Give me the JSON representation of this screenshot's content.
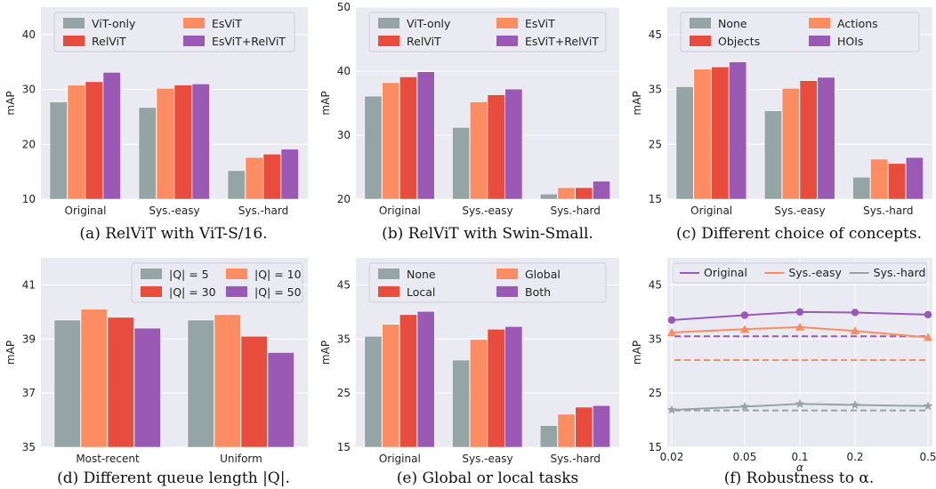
{
  "chart_data": [
    {
      "type": "bar",
      "caption": "(a) RelViT with ViT-S/16.",
      "ylabel": "mAP",
      "ylim": [
        10,
        45
      ],
      "yticks": [
        10,
        20,
        30,
        40
      ],
      "categories": [
        "Original",
        "Sys.-easy",
        "Sys.-hard"
      ],
      "legend_position": "top",
      "series": [
        {
          "name": "ViT-only",
          "color": "#95a5a6",
          "values": [
            27.7,
            26.7,
            15.2
          ]
        },
        {
          "name": "EsViT",
          "color": "#fc8d62",
          "values": [
            30.8,
            30.2,
            17.6
          ]
        },
        {
          "name": "RelViT",
          "color": "#e74c3c",
          "values": [
            31.4,
            30.8,
            18.2
          ]
        },
        {
          "name": "EsViT+RelViT",
          "color": "#9b59b6",
          "values": [
            33.1,
            31.0,
            19.1
          ]
        }
      ]
    },
    {
      "type": "bar",
      "caption": "(b) RelViT with Swin-Small.",
      "ylabel": "mAP",
      "ylim": [
        20,
        50
      ],
      "yticks": [
        20,
        30,
        40,
        50
      ],
      "categories": [
        "Original",
        "Sys.-easy",
        "Sys.-hard"
      ],
      "legend_position": "top",
      "series": [
        {
          "name": "ViT-only",
          "color": "#95a5a6",
          "values": [
            36.1,
            31.2,
            20.8
          ]
        },
        {
          "name": "EsViT",
          "color": "#fc8d62",
          "values": [
            38.2,
            35.2,
            21.8
          ]
        },
        {
          "name": "RelViT",
          "color": "#e74c3c",
          "values": [
            39.1,
            36.3,
            21.8
          ]
        },
        {
          "name": "EsViT+RelViT",
          "color": "#9b59b6",
          "values": [
            39.9,
            37.2,
            22.8
          ]
        }
      ]
    },
    {
      "type": "bar",
      "caption": "(c) Different choice of concepts.",
      "ylabel": "mAP",
      "ylim": [
        15,
        50
      ],
      "yticks": [
        15,
        25,
        35,
        45
      ],
      "categories": [
        "Original",
        "Sys.-easy",
        "Sys.-hard"
      ],
      "legend_position": "top",
      "series": [
        {
          "name": "None",
          "color": "#95a5a6",
          "values": [
            35.5,
            31.1,
            19.0
          ]
        },
        {
          "name": "Actions",
          "color": "#fc8d62",
          "values": [
            38.7,
            35.2,
            22.3
          ]
        },
        {
          "name": "Objects",
          "color": "#e74c3c",
          "values": [
            39.1,
            36.6,
            21.5
          ]
        },
        {
          "name": "HOIs",
          "color": "#9b59b6",
          "values": [
            40.0,
            37.2,
            22.6
          ]
        }
      ]
    },
    {
      "type": "bar",
      "caption": "(d) Different queue length |Q|.",
      "ylabel": "mAP",
      "ylim": [
        35,
        42
      ],
      "yticks": [
        35,
        37,
        39,
        41
      ],
      "categories": [
        "Most-recent",
        "Uniform"
      ],
      "legend_position": "top-right",
      "series": [
        {
          "name": "|Q| = 5",
          "color": "#95a5a6",
          "values": [
            39.7,
            39.7
          ]
        },
        {
          "name": "|Q| = 10",
          "color": "#fc8d62",
          "values": [
            40.1,
            39.9
          ]
        },
        {
          "name": "|Q| = 30",
          "color": "#e74c3c",
          "values": [
            39.8,
            39.1
          ]
        },
        {
          "name": "|Q| = 50",
          "color": "#9b59b6",
          "values": [
            39.4,
            38.5
          ]
        }
      ]
    },
    {
      "type": "bar",
      "caption": "(e) Global or local tasks",
      "ylabel": "mAP",
      "ylim": [
        15,
        50
      ],
      "yticks": [
        15,
        25,
        35,
        45
      ],
      "categories": [
        "Original",
        "Sys.-easy",
        "Sys.-hard"
      ],
      "legend_position": "top",
      "series": [
        {
          "name": "None",
          "color": "#95a5a6",
          "values": [
            35.5,
            31.1,
            19.0
          ]
        },
        {
          "name": "Global",
          "color": "#fc8d62",
          "values": [
            37.7,
            34.9,
            21.1
          ]
        },
        {
          "name": "Local",
          "color": "#e74c3c",
          "values": [
            39.5,
            36.8,
            22.4
          ]
        },
        {
          "name": "Both",
          "color": "#9b59b6",
          "values": [
            40.1,
            37.3,
            22.7
          ]
        }
      ]
    },
    {
      "type": "line",
      "caption": "(f) Robustness to α.",
      "ylabel": "mAP",
      "xlabel": "α",
      "ylim": [
        15,
        50
      ],
      "yticks": [
        15,
        25,
        35,
        45
      ],
      "x": [
        0.02,
        0.05,
        0.1,
        0.2,
        0.5
      ],
      "xscale": "log",
      "legend_position": "top",
      "series": [
        {
          "name": "Original",
          "color": "#9b59b6",
          "marker": "circle",
          "values": [
            38.5,
            39.4,
            40.0,
            39.9,
            39.5
          ],
          "baseline": 35.5
        },
        {
          "name": "Sys.-easy",
          "color": "#fc8d62",
          "marker": "triangle",
          "values": [
            36.2,
            36.8,
            37.2,
            36.5,
            35.3
          ],
          "baseline": 31.1
        },
        {
          "name": "Sys.-hard",
          "color": "#95a5a6",
          "marker": "star",
          "values": [
            21.9,
            22.5,
            23.0,
            22.8,
            22.6
          ],
          "baseline": 21.8
        }
      ]
    }
  ]
}
